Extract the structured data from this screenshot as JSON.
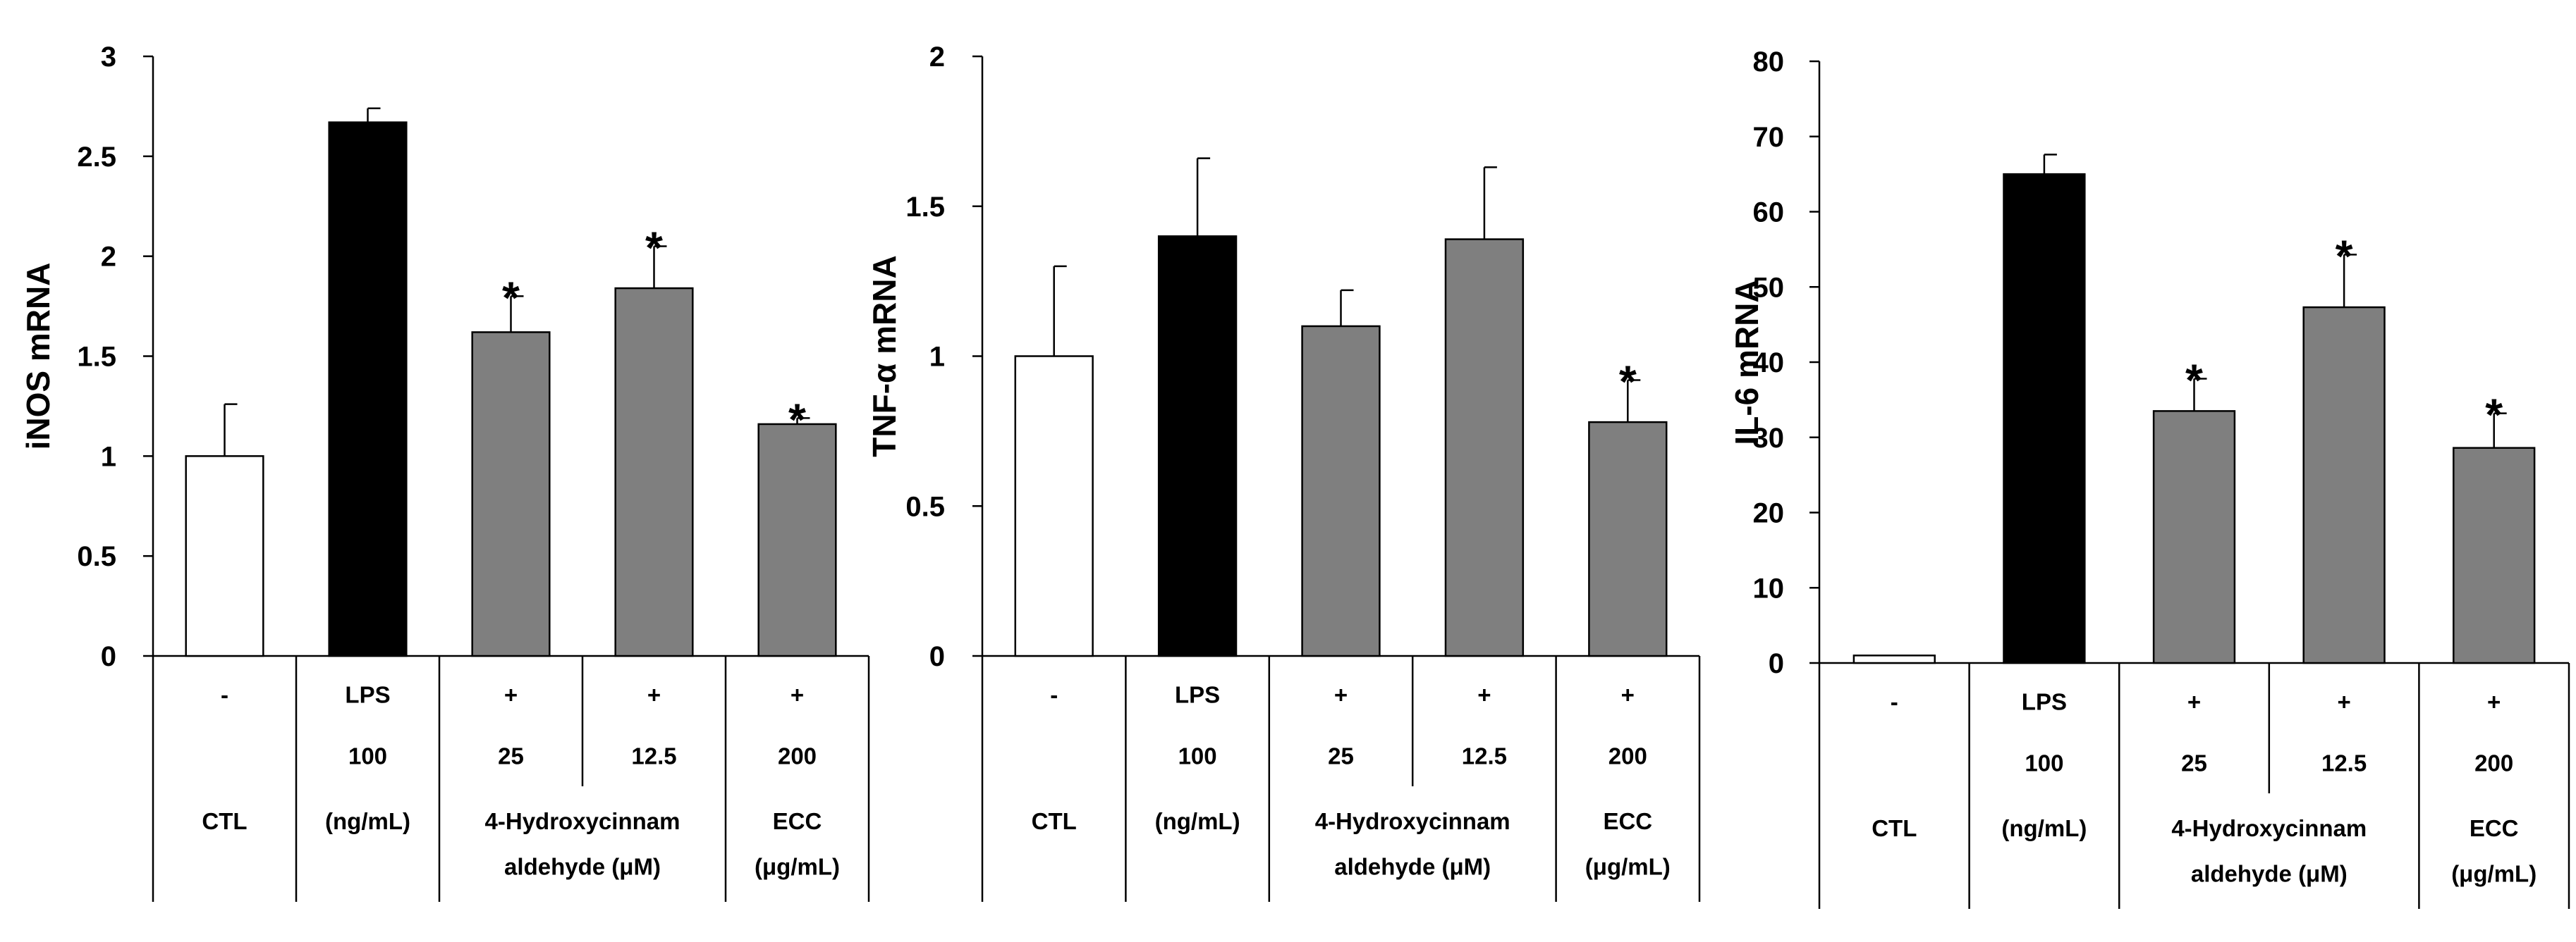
{
  "colors": {
    "CTL": "#ffffff",
    "LPS": "#000000",
    "treated": "#7f7f7f",
    "axis": "#000000"
  },
  "chart_data": [
    {
      "type": "bar",
      "ylabel": "iNOS mRNA",
      "ylim": [
        0,
        3
      ],
      "yticks": [
        0,
        0.5,
        1,
        1.5,
        2,
        2.5,
        3
      ],
      "ytick_labels": [
        "0",
        "0.5",
        "1",
        "1.5",
        "2",
        "2.5",
        "3"
      ],
      "categories": [
        "CTL",
        "LPS 100",
        "+ 25",
        "+ 12.5",
        "+ 200"
      ],
      "values": [
        1.0,
        2.67,
        1.62,
        1.84,
        1.16
      ],
      "errors": [
        0.26,
        0.07,
        0.18,
        0.21,
        0.03
      ],
      "fill": [
        "CTL",
        "LPS",
        "treated",
        "treated",
        "treated"
      ],
      "significant": [
        false,
        false,
        true,
        true,
        true
      ],
      "significance_mark": "*",
      "table": {
        "row1": [
          "-",
          "LPS",
          "+",
          "+",
          "+"
        ],
        "row2": [
          "",
          "100",
          "25",
          "12.5",
          "200"
        ],
        "group1": "CTL",
        "group2": "(ng/mL)",
        "group3_line1": "4-Hydroxycinnam",
        "group3_line2": "aldehyde (μM)",
        "group4_line1": "ECC",
        "group4_line2": "(μg/mL)"
      }
    },
    {
      "type": "bar",
      "ylabel": "TNF-α mRNA",
      "ylim": [
        0,
        2
      ],
      "yticks": [
        0,
        0.5,
        1,
        1.5,
        2
      ],
      "ytick_labels": [
        "0",
        "0.5",
        "1",
        "1.5",
        "2"
      ],
      "categories": [
        "CTL",
        "LPS 100",
        "+ 25",
        "+ 12.5",
        "+ 200"
      ],
      "values": [
        1.0,
        1.4,
        1.1,
        1.39,
        0.78
      ],
      "errors": [
        0.3,
        0.26,
        0.12,
        0.24,
        0.14
      ],
      "fill": [
        "CTL",
        "LPS",
        "treated",
        "treated",
        "treated"
      ],
      "significant": [
        false,
        false,
        false,
        false,
        true
      ],
      "significance_mark": "*",
      "table": {
        "row1": [
          "-",
          "LPS",
          "+",
          "+",
          "+"
        ],
        "row2": [
          "",
          "100",
          "25",
          "12.5",
          "200"
        ],
        "group1": "CTL",
        "group2": "(ng/mL)",
        "group3_line1": "4-Hydroxycinnam",
        "group3_line2": "aldehyde (μM)",
        "group4_line1": "ECC",
        "group4_line2": "(μg/mL)"
      }
    },
    {
      "type": "bar",
      "ylabel": "IL-6 mRNA",
      "ylim": [
        0,
        80
      ],
      "yticks": [
        0,
        10,
        20,
        30,
        40,
        50,
        60,
        70,
        80
      ],
      "ytick_labels": [
        "0",
        "10",
        "20",
        "30",
        "40",
        "50",
        "60",
        "70",
        "80"
      ],
      "categories": [
        "CTL",
        "LPS 100",
        "+ 25",
        "+ 12.5",
        "+ 200"
      ],
      "values": [
        1.0,
        65.0,
        33.5,
        47.3,
        28.6
      ],
      "errors": [
        0,
        2.6,
        4.3,
        7.0,
        4.6
      ],
      "fill": [
        "CTL",
        "LPS",
        "treated",
        "treated",
        "treated"
      ],
      "significant": [
        false,
        false,
        true,
        true,
        true
      ],
      "significance_mark": "*",
      "table": {
        "row1": [
          "-",
          "LPS",
          "+",
          "+",
          "+"
        ],
        "row2": [
          "",
          "100",
          "25",
          "12.5",
          "200"
        ],
        "group1": "CTL",
        "group2": "(ng/mL)",
        "group3_line1": "4-Hydroxycinnam",
        "group3_line2": "aldehyde (μM)",
        "group4_line1": "ECC",
        "group4_line2": "(μg/mL)"
      }
    }
  ]
}
